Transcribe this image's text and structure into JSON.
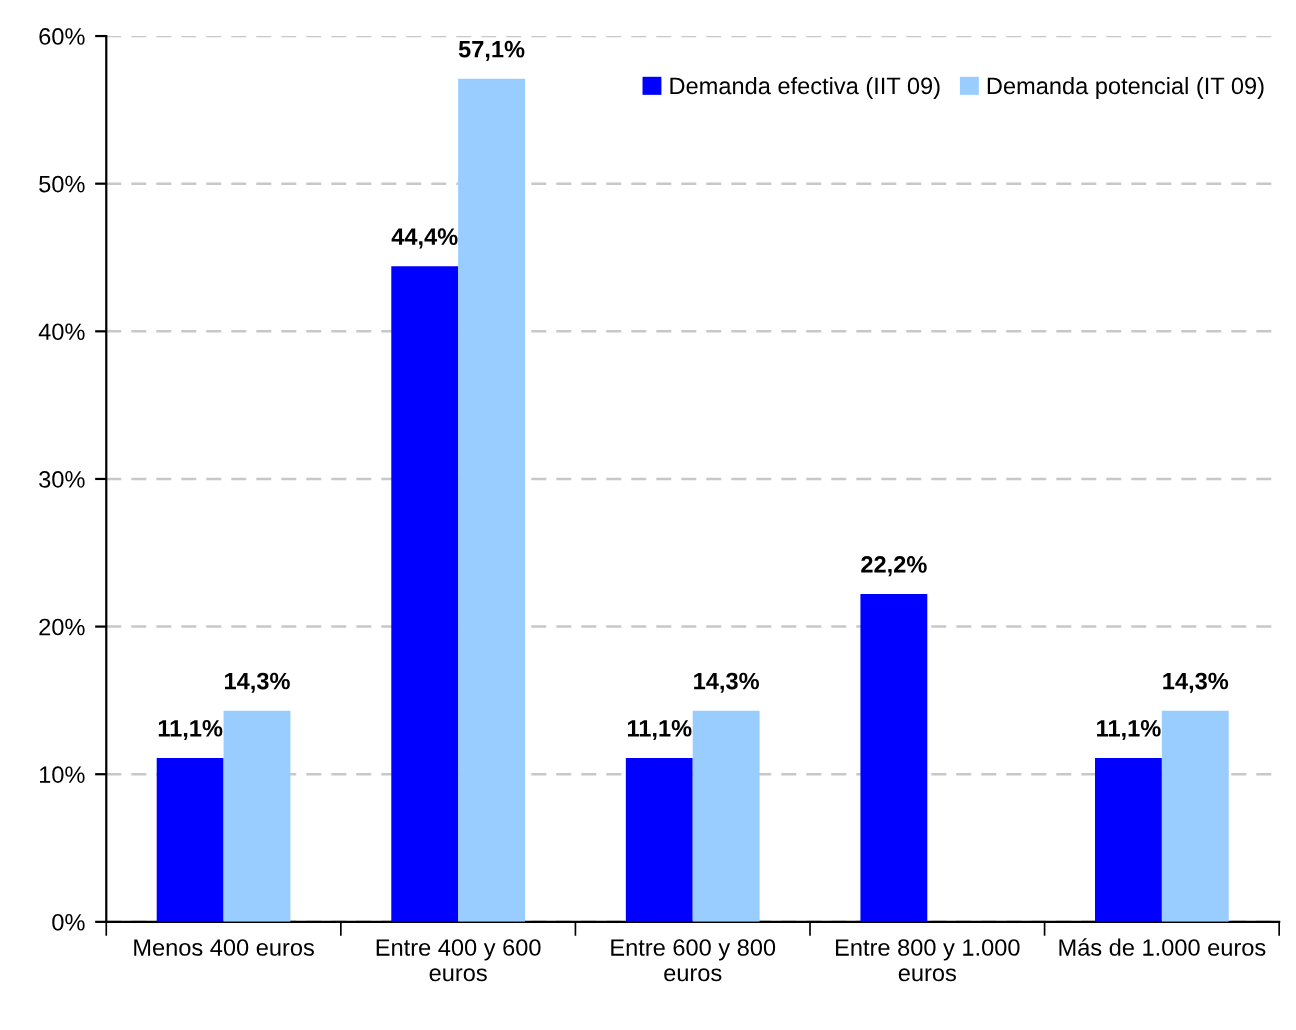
{
  "chart_data": {
    "type": "bar",
    "categories": [
      "Menos 400 euros",
      "Entre 400 y 600 euros",
      "Entre 600 y 800 euros",
      "Entre 800 y 1.000 euros",
      "Más de 1.000 euros"
    ],
    "series": [
      {
        "name": "Demanda efectiva (IIT 09)",
        "color": "#0000ff",
        "values": [
          11.1,
          44.4,
          11.1,
          22.2,
          11.1
        ],
        "value_labels": [
          "11,1%",
          "44,4%",
          "11,1%",
          "22,2%",
          "11,1%"
        ]
      },
      {
        "name": "Demanda potencial (IT 09)",
        "color": "#99ccff",
        "values": [
          14.3,
          57.1,
          14.3,
          null,
          14.3
        ],
        "value_labels": [
          "14,3%",
          "57,1%",
          "14,3%",
          null,
          "14,3%"
        ]
      }
    ],
    "ylim": [
      0,
      60
    ],
    "yticks": [
      {
        "value": 0,
        "label": "0%"
      },
      {
        "value": 10,
        "label": "10%"
      },
      {
        "value": 20,
        "label": "20%"
      },
      {
        "value": 30,
        "label": "30%"
      },
      {
        "value": 40,
        "label": "40%"
      },
      {
        "value": 50,
        "label": "50%"
      },
      {
        "value": 60,
        "label": "60%"
      }
    ],
    "grid": "y",
    "legend": "top right"
  }
}
